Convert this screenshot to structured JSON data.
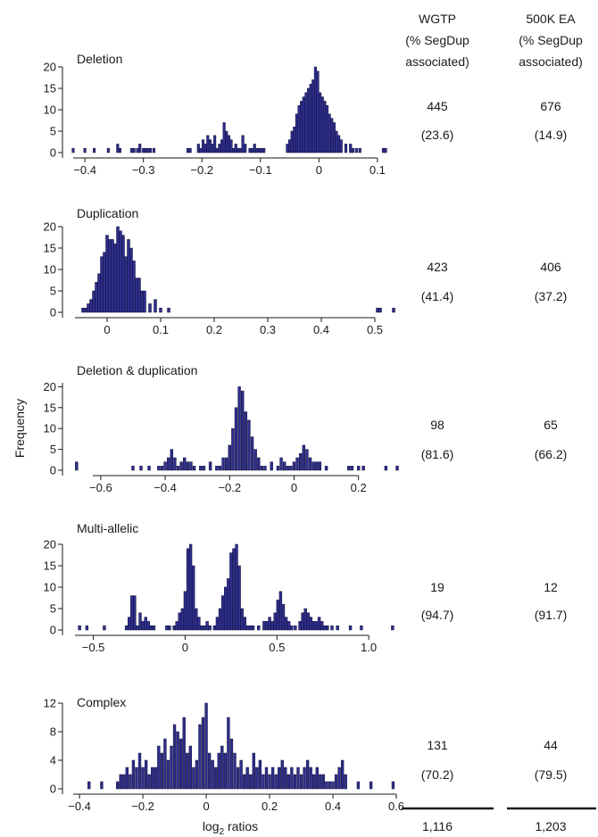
{
  "columns": [
    {
      "lines": [
        "WGTP",
        "(% SegDup",
        "associated)"
      ],
      "total": "1,116"
    },
    {
      "lines": [
        "500K EA",
        "(% SegDup",
        "associated)"
      ],
      "total": "1,203"
    }
  ],
  "ylabel": "Frequency",
  "xlabel": "log<sub>2</sub> ratios",
  "xlabel_main": "log",
  "xlabel_sub": "2",
  "xlabel_rest": " ratios",
  "chart_data": [
    {
      "type": "bar",
      "title": "Deletion",
      "xlim": [
        -0.42,
        0.12
      ],
      "ylim": [
        0,
        20
      ],
      "xticks": [
        -0.4,
        -0.3,
        -0.2,
        -0.1,
        0,
        0.1
      ],
      "xtick_labels": [
        "−0.4",
        "−0.3",
        "−0.2",
        "−0.1",
        "0",
        "0.1"
      ],
      "yticks": [
        0,
        5,
        10,
        15,
        20
      ],
      "ytick_labels": [
        "0",
        "5",
        "10",
        "15",
        "20"
      ],
      "bin_width": 0.004,
      "x": [
        -0.42,
        -0.4,
        -0.384,
        -0.36,
        -0.344,
        -0.34,
        -0.32,
        -0.316,
        -0.31,
        -0.306,
        -0.3,
        -0.296,
        -0.292,
        -0.288,
        -0.282,
        -0.224,
        -0.22,
        -0.206,
        -0.202,
        -0.198,
        -0.194,
        -0.19,
        -0.186,
        -0.182,
        -0.178,
        -0.174,
        -0.17,
        -0.166,
        -0.162,
        -0.158,
        -0.154,
        -0.15,
        -0.146,
        -0.142,
        -0.138,
        -0.134,
        -0.13,
        -0.126,
        -0.118,
        -0.114,
        -0.11,
        -0.106,
        -0.102,
        -0.098,
        -0.094,
        -0.054,
        -0.05,
        -0.046,
        -0.042,
        -0.038,
        -0.034,
        -0.03,
        -0.026,
        -0.022,
        -0.018,
        -0.014,
        -0.01,
        -0.006,
        -0.002,
        0.002,
        0.006,
        0.01,
        0.014,
        0.018,
        0.022,
        0.026,
        0.03,
        0.034,
        0.038,
        0.046,
        0.054,
        0.058,
        0.064,
        0.07,
        0.11,
        0.114
      ],
      "y": [
        1,
        1,
        1,
        1,
        2,
        1,
        1,
        1,
        1,
        2,
        1,
        1,
        1,
        1,
        1,
        1,
        1,
        2,
        1,
        3,
        2,
        4,
        3,
        2,
        4,
        1,
        2,
        3,
        7,
        5,
        4,
        3,
        1,
        2,
        1,
        1,
        4,
        2,
        1,
        1,
        2,
        1,
        1,
        1,
        1,
        2,
        3,
        5,
        6,
        9,
        11,
        12,
        13,
        14,
        15,
        16,
        17,
        20,
        19,
        14,
        13,
        12,
        11,
        9,
        8,
        7,
        5,
        4,
        3,
        2,
        2,
        1,
        1,
        1,
        1,
        1
      ],
      "stats": [
        "445",
        "(23.6)",
        "676",
        "(14.9)"
      ]
    },
    {
      "type": "bar",
      "title": "Duplication",
      "xlim": [
        -0.06,
        0.54
      ],
      "ylim": [
        0,
        20
      ],
      "xticks": [
        0,
        0.1,
        0.2,
        0.3,
        0.4,
        0.5
      ],
      "xtick_labels": [
        "0",
        "0.1",
        "0.2",
        "0.3",
        "0.4",
        "0.5"
      ],
      "yticks": [
        0,
        5,
        10,
        15,
        20
      ],
      "ytick_labels": [
        "0",
        "5",
        "10",
        "15",
        "20"
      ],
      "bin_width": 0.005,
      "x": [
        -0.045,
        -0.04,
        -0.035,
        -0.03,
        -0.025,
        -0.02,
        -0.015,
        -0.01,
        -0.005,
        0,
        0.005,
        0.01,
        0.015,
        0.02,
        0.025,
        0.03,
        0.035,
        0.04,
        0.045,
        0.05,
        0.055,
        0.06,
        0.065,
        0.07,
        0.08,
        0.09,
        0.1,
        0.115,
        0.505,
        0.51,
        0.535
      ],
      "y": [
        1,
        1,
        2,
        3,
        5,
        7,
        9,
        13,
        14,
        18,
        17,
        17,
        16,
        20,
        19,
        18,
        13,
        17,
        15,
        12,
        8,
        8,
        5,
        5,
        2,
        3,
        1,
        1,
        1,
        1,
        1
      ],
      "stats": [
        "423",
        "(41.4)",
        "406",
        "(37.2)"
      ]
    },
    {
      "type": "bar",
      "title": "Deletion & duplication",
      "xlim": [
        -0.68,
        0.32
      ],
      "ylim": [
        0,
        25
      ],
      "xticks": [
        -0.6,
        -0.4,
        -0.2,
        0,
        0.2
      ],
      "xtick_labels": [
        "−0.6",
        "−0.4",
        "−0.2",
        "0",
        "0.2"
      ],
      "yticks": [
        0,
        5,
        10,
        15,
        20
      ],
      "ytick_labels": [
        "0",
        "5",
        "10",
        "15",
        "20"
      ],
      "bin_width": 0.008,
      "x": [
        -0.675,
        -0.5,
        -0.475,
        -0.45,
        -0.42,
        -0.41,
        -0.4,
        -0.39,
        -0.38,
        -0.37,
        -0.36,
        -0.35,
        -0.34,
        -0.33,
        -0.32,
        -0.31,
        -0.29,
        -0.28,
        -0.26,
        -0.24,
        -0.23,
        -0.22,
        -0.21,
        -0.2,
        -0.19,
        -0.18,
        -0.17,
        -0.16,
        -0.15,
        -0.14,
        -0.13,
        -0.12,
        -0.11,
        -0.1,
        -0.09,
        -0.07,
        -0.05,
        -0.04,
        -0.03,
        -0.02,
        -0.01,
        0,
        0.01,
        0.02,
        0.03,
        0.04,
        0.05,
        0.06,
        0.07,
        0.08,
        0.1,
        0.17,
        0.18,
        0.2,
        0.215,
        0.285,
        0.32
      ],
      "y": [
        2,
        1,
        1,
        1,
        1,
        1,
        2,
        3,
        5,
        3,
        1,
        2,
        3,
        2,
        2,
        1,
        1,
        1,
        2,
        1,
        1,
        3,
        3,
        6,
        10,
        15,
        20,
        19,
        14,
        12,
        8,
        5,
        3,
        1,
        1,
        2,
        1,
        3,
        2,
        1,
        1,
        2,
        3,
        4,
        6,
        5,
        3,
        2,
        2,
        2,
        1,
        1,
        1,
        1,
        1,
        1,
        1
      ],
      "stats": [
        "98",
        "(81.6)",
        "65",
        "(66.2)"
      ]
    },
    {
      "type": "bar",
      "title": "Multi-allelic",
      "xlim": [
        -0.6,
        1.15
      ],
      "ylim": [
        0,
        20
      ],
      "xticks": [
        -0.5,
        0,
        0.5,
        1.0
      ],
      "xtick_labels": [
        "−0.5",
        "0",
        "0.5",
        "1.0"
      ],
      "yticks": [
        0,
        5,
        10,
        15,
        20
      ],
      "ytick_labels": [
        "0",
        "5",
        "10",
        "15",
        "20"
      ],
      "bin_width": 0.014,
      "x": [
        -0.575,
        -0.535,
        -0.44,
        -0.32,
        -0.305,
        -0.29,
        -0.275,
        -0.26,
        -0.245,
        -0.23,
        -0.215,
        -0.2,
        -0.185,
        -0.17,
        -0.1,
        -0.085,
        -0.06,
        -0.045,
        -0.03,
        -0.015,
        0,
        0.015,
        0.03,
        0.045,
        0.06,
        0.075,
        0.09,
        0.105,
        0.12,
        0.135,
        0.16,
        0.175,
        0.19,
        0.205,
        0.22,
        0.235,
        0.25,
        0.265,
        0.28,
        0.295,
        0.31,
        0.325,
        0.34,
        0.355,
        0.37,
        0.4,
        0.43,
        0.445,
        0.46,
        0.475,
        0.49,
        0.505,
        0.52,
        0.535,
        0.55,
        0.565,
        0.58,
        0.6,
        0.625,
        0.64,
        0.655,
        0.67,
        0.685,
        0.7,
        0.715,
        0.73,
        0.745,
        0.76,
        0.775,
        0.8,
        0.83,
        0.9,
        0.96,
        1.13
      ],
      "y": [
        1,
        1,
        1,
        1,
        3,
        8,
        8,
        1,
        4,
        2,
        3,
        2,
        1,
        1,
        1,
        1,
        1,
        2,
        4,
        5,
        9,
        19,
        20,
        15,
        5,
        3,
        1,
        1,
        2,
        1,
        1,
        3,
        5,
        8,
        10,
        12,
        18,
        19,
        20,
        15,
        5,
        3,
        1,
        1,
        1,
        1,
        2,
        2,
        3,
        2,
        4,
        7,
        9,
        6,
        3,
        2,
        1,
        1,
        2,
        4,
        5,
        4,
        3,
        2,
        2,
        3,
        2,
        1,
        1,
        1,
        1,
        1,
        1,
        1
      ],
      "stats": [
        "19",
        "(94.7)",
        "12",
        "(91.7)"
      ]
    },
    {
      "type": "bar",
      "title": "Complex",
      "xlim": [
        -0.42,
        0.6
      ],
      "ylim": [
        0,
        12
      ],
      "xticks": [
        -0.4,
        -0.2,
        0,
        0.2,
        0.4,
        0.6
      ],
      "xtick_labels": [
        "−0.4",
        "−0.2",
        "0",
        "0.2",
        "0.4",
        "0.6"
      ],
      "yticks": [
        0,
        4,
        8,
        12
      ],
      "ytick_labels": [
        "0",
        "4",
        "8",
        "12"
      ],
      "bin_width": 0.008,
      "x": [
        -0.37,
        -0.33,
        -0.28,
        -0.27,
        -0.26,
        -0.25,
        -0.24,
        -0.23,
        -0.22,
        -0.21,
        -0.2,
        -0.19,
        -0.18,
        -0.17,
        -0.16,
        -0.15,
        -0.14,
        -0.13,
        -0.12,
        -0.11,
        -0.1,
        -0.09,
        -0.08,
        -0.07,
        -0.06,
        -0.05,
        -0.04,
        -0.03,
        -0.02,
        -0.01,
        0,
        0.01,
        0.02,
        0.03,
        0.04,
        0.05,
        0.06,
        0.07,
        0.08,
        0.09,
        0.1,
        0.11,
        0.12,
        0.13,
        0.14,
        0.15,
        0.16,
        0.17,
        0.18,
        0.19,
        0.2,
        0.21,
        0.22,
        0.23,
        0.24,
        0.25,
        0.26,
        0.27,
        0.28,
        0.29,
        0.3,
        0.31,
        0.32,
        0.33,
        0.34,
        0.35,
        0.36,
        0.37,
        0.38,
        0.39,
        0.4,
        0.41,
        0.42,
        0.43,
        0.44,
        0.48,
        0.52,
        0.59
      ],
      "y": [
        1,
        1,
        1,
        2,
        2,
        3,
        2,
        4,
        3,
        5,
        3,
        4,
        2,
        3,
        3,
        6,
        5,
        7,
        4,
        6,
        9,
        8,
        7,
        10,
        5,
        6,
        3,
        4,
        9,
        10,
        12,
        5,
        4,
        3,
        5,
        6,
        5,
        10,
        7,
        5,
        3,
        4,
        2,
        3,
        2,
        5,
        3,
        4,
        2,
        3,
        2,
        3,
        2,
        3,
        4,
        3,
        2,
        3,
        2,
        3,
        2,
        3,
        4,
        3,
        2,
        3,
        2,
        2,
        1,
        1,
        1,
        2,
        3,
        4,
        2,
        1,
        1,
        1
      ],
      "stats": [
        "131",
        "(70.2)",
        "44",
        "(79.5)"
      ]
    }
  ]
}
